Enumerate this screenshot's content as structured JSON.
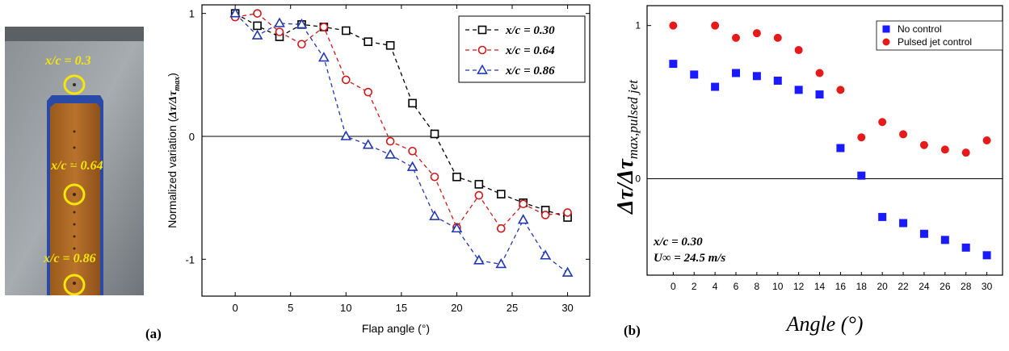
{
  "photo": {
    "labels": [
      "x/c = 0.3",
      "x/c = 0.64",
      "x/c = 0.86"
    ],
    "marker_color": "#f5e60a"
  },
  "panel_labels": {
    "a": "(a)",
    "b": "(b)"
  },
  "chart_data": [
    {
      "type": "line",
      "xlabel": "Flap angle (°)",
      "ylabel": "Normalized variation (Δτ/Δτmax)",
      "ylabel_parts": {
        "prefix": "Normalized variation (",
        "main": "Δτ/Δτ",
        "sub": "max",
        "suffix": ")"
      },
      "xlim": [
        -3,
        32
      ],
      "ylim": [
        -1.3,
        1.07
      ],
      "xticks": [
        0,
        5,
        10,
        15,
        20,
        25,
        30
      ],
      "yticks": [
        -1,
        0,
        1
      ],
      "grid": false,
      "legend_position": "top-right",
      "series": [
        {
          "name": "x/c = 0.30",
          "color": "#000000",
          "marker": "square",
          "x": [
            0,
            2,
            4,
            6,
            8,
            10,
            12,
            14,
            16,
            18,
            20,
            22,
            24,
            26,
            28,
            30
          ],
          "y": [
            1.0,
            0.9,
            0.81,
            0.91,
            0.89,
            0.86,
            0.77,
            0.74,
            0.27,
            0.02,
            -0.33,
            -0.39,
            -0.47,
            -0.54,
            -0.6,
            -0.66
          ]
        },
        {
          "name": "x/c = 0.64",
          "color": "#cc1a1a",
          "marker": "circle",
          "x": [
            0,
            2,
            4,
            6,
            8,
            10,
            12,
            14,
            16,
            18,
            20,
            22,
            24,
            26,
            28,
            30
          ],
          "y": [
            0.97,
            1.0,
            0.85,
            0.75,
            0.89,
            0.46,
            0.36,
            -0.04,
            -0.12,
            -0.33,
            -0.74,
            -0.48,
            -0.75,
            -0.55,
            -0.64,
            -0.62
          ]
        },
        {
          "name": "x/c = 0.86",
          "color": "#2238b0",
          "marker": "triangle",
          "x": [
            0,
            2,
            4,
            6,
            8,
            10,
            12,
            14,
            16,
            18,
            20,
            22,
            24,
            26,
            28,
            30
          ],
          "y": [
            1.0,
            0.82,
            0.92,
            0.91,
            0.64,
            0.0,
            -0.07,
            -0.15,
            -0.25,
            -0.65,
            -0.75,
            -1.01,
            -1.04,
            -0.68,
            -0.97,
            -1.11
          ]
        }
      ]
    },
    {
      "type": "scatter",
      "xlabel": "Angle (°)",
      "ylabel": "Δτ/Δτmax,pulsed jet",
      "ylabel_parts": {
        "main": "Δτ/Δτ",
        "sub": "max,pulsed jet"
      },
      "xlim": [
        -2.5,
        31.5
      ],
      "ylim": [
        -0.63,
        1.13
      ],
      "xticks": [
        0,
        2,
        4,
        6,
        8,
        10,
        12,
        14,
        16,
        18,
        20,
        22,
        24,
        26,
        28,
        30
      ],
      "yticks": [
        0,
        1
      ],
      "grid": false,
      "legend_position": "top-right",
      "annotation": [
        "x/c = 0.30",
        "U∞ = 24.5 m/s"
      ],
      "series": [
        {
          "name": "No control",
          "color": "#1a1aff",
          "marker": "square",
          "x": [
            0,
            2,
            4,
            6,
            8,
            10,
            12,
            14,
            16,
            18,
            20,
            22,
            24,
            26,
            28,
            30
          ],
          "y": [
            0.75,
            0.68,
            0.6,
            0.69,
            0.67,
            0.64,
            0.58,
            0.55,
            0.2,
            0.02,
            -0.25,
            -0.29,
            -0.36,
            -0.4,
            -0.45,
            -0.5
          ]
        },
        {
          "name": "Pulsed jet control",
          "color": "#e51a1a",
          "marker": "circle",
          "x": [
            0,
            4,
            6,
            8,
            10,
            12,
            14,
            16,
            18,
            20,
            22,
            24,
            26,
            28,
            30
          ],
          "y": [
            1.0,
            1.0,
            0.92,
            0.95,
            0.92,
            0.84,
            0.69,
            0.58,
            0.27,
            0.37,
            0.29,
            0.22,
            0.19,
            0.17,
            0.25
          ]
        }
      ]
    }
  ]
}
